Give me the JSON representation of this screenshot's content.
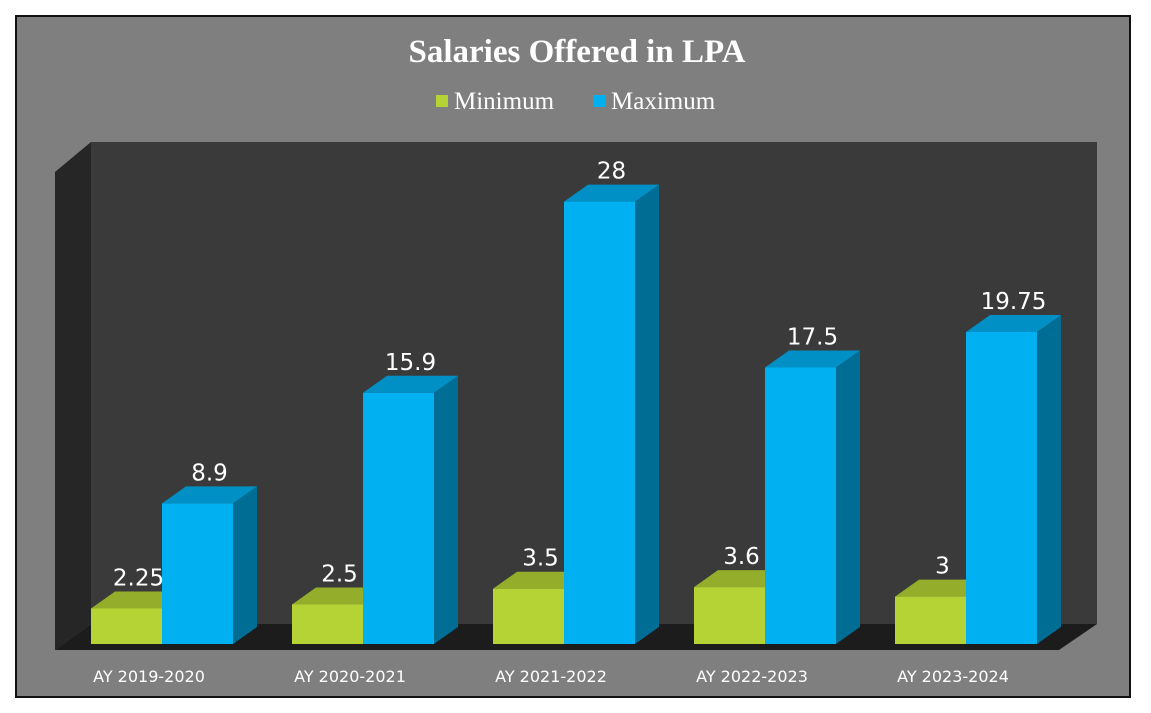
{
  "chart_data": {
    "type": "bar",
    "title": "Salaries Offered in LPA",
    "categories": [
      "AY 2019-2020",
      "AY 2020-2021",
      "AY 2021-2022",
      "AY 2022-2023",
      "AY 2023-2024"
    ],
    "series": [
      {
        "name": "Minimum",
        "values": [
          2.25,
          2.5,
          3.5,
          3.6,
          3
        ],
        "labels": [
          "2.25",
          "2.5",
          "3.5",
          "3.6",
          "3"
        ],
        "color": "#b5d334"
      },
      {
        "name": "Maximum",
        "values": [
          8.9,
          15.9,
          28,
          17.5,
          19.75
        ],
        "labels": [
          "8.9",
          "15.9",
          "28",
          "17.5",
          "19.75"
        ],
        "color": "#00b0f0"
      }
    ],
    "ylim": [
      0,
      30
    ],
    "legend": "top",
    "grid": false
  },
  "colors": {
    "background": "#7f7f7f",
    "back_wall": "#3a3a3a",
    "side_wall": "#262626",
    "floor": "#1c1c1c"
  }
}
